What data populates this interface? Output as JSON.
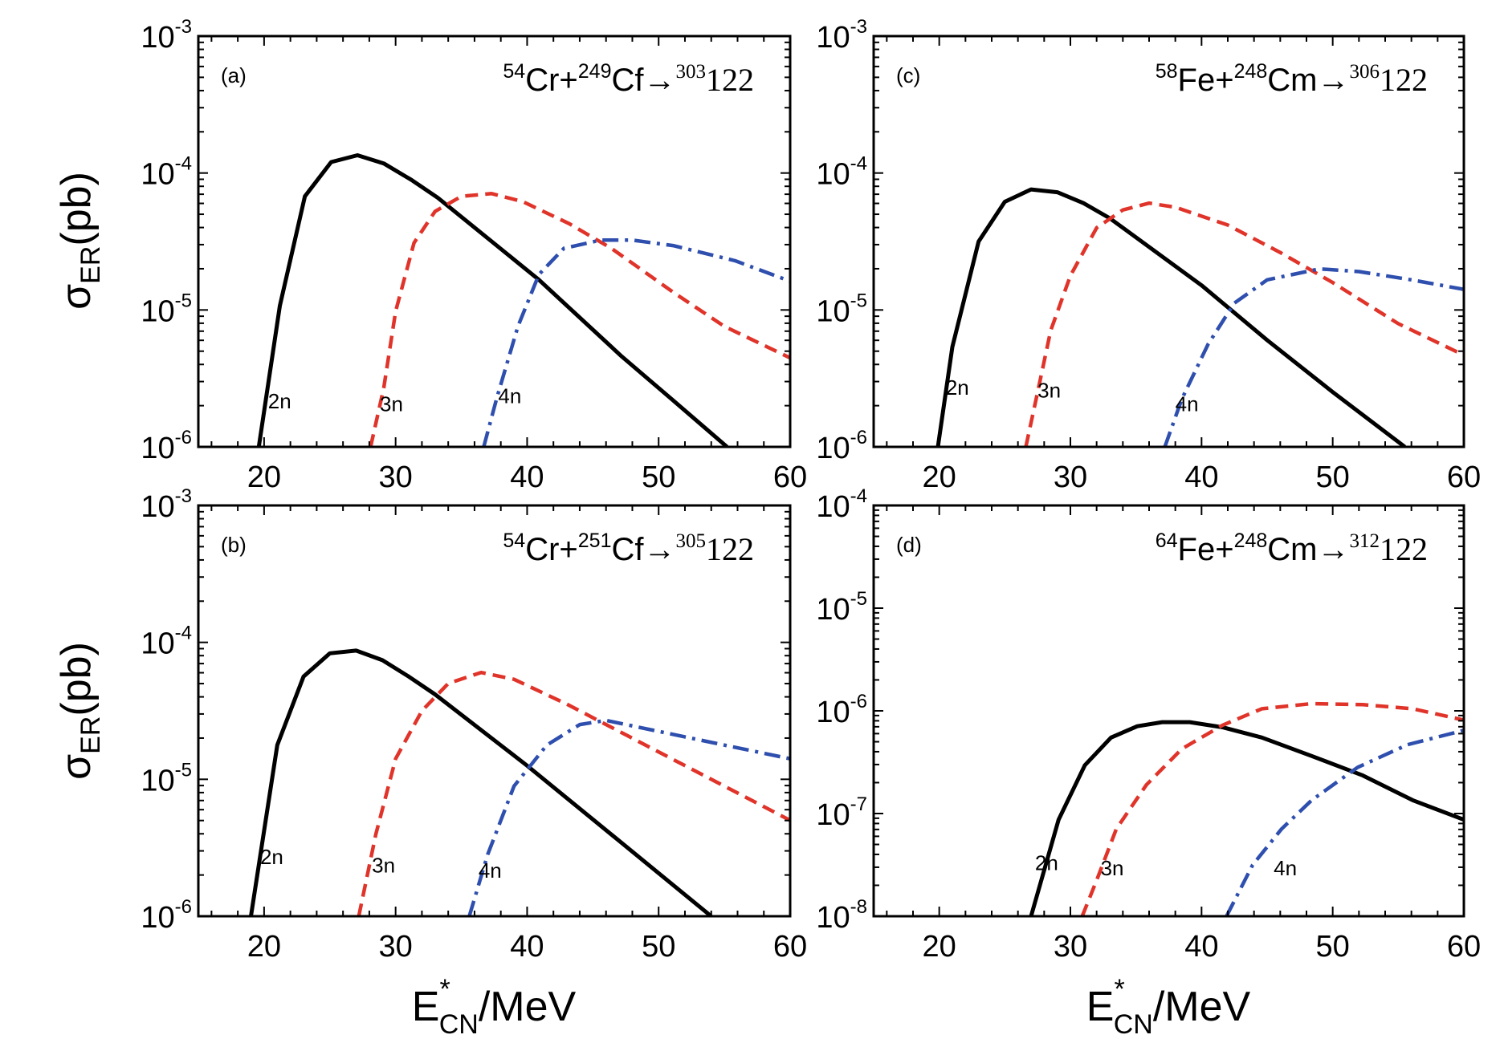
{
  "colors": {
    "2n": "#000000",
    "3n": "#e0342a",
    "4n": "#2f4fae"
  },
  "axis_labels": {
    "y": {
      "main": "σ",
      "sub": "ER",
      "unit": "(pb)"
    },
    "x": {
      "main": "E",
      "sup": "*",
      "sub": "CN",
      "unit": "/MeV"
    }
  },
  "chart_data": [
    {
      "type": "line",
      "panel": "(a)",
      "title": {
        "proj_mass": "54",
        "proj": "Cr+",
        "targ_mass": "249",
        "targ": "Cf→",
        "cn_mass": "303",
        "cn": "122"
      },
      "xlim": [
        15,
        60
      ],
      "ylim": [
        1e-06,
        0.001
      ],
      "yscale": "log",
      "xticks": [
        "20",
        "30",
        "40",
        "50",
        "60"
      ],
      "yticks": [
        {
          "base": "10",
          "exp": "-6"
        },
        {
          "base": "10",
          "exp": "-5"
        },
        {
          "base": "10",
          "exp": "-4"
        },
        {
          "base": "10",
          "exp": "-3"
        }
      ],
      "series": [
        {
          "name": "2n",
          "style": "solid",
          "points": [
            [
              19.6,
              -6
            ],
            [
              21.2,
              -4.97
            ],
            [
              23.1,
              -4.17
            ],
            [
              25.1,
              -3.92
            ],
            [
              27.1,
              -3.87
            ],
            [
              29.1,
              -3.93
            ],
            [
              31.2,
              -4.05
            ],
            [
              33.2,
              -4.18
            ],
            [
              40.9,
              -4.78
            ],
            [
              47.2,
              -5.34
            ],
            [
              51.1,
              -5.66
            ],
            [
              55.2,
              -6
            ]
          ]
        },
        {
          "name": "3n",
          "style": "dashed",
          "points": [
            [
              28.1,
              -6
            ],
            [
              29.1,
              -5.57
            ],
            [
              30.0,
              -5.01
            ],
            [
              31.4,
              -4.51
            ],
            [
              33.0,
              -4.28
            ],
            [
              35.0,
              -4.17
            ],
            [
              37.3,
              -4.15
            ],
            [
              39.7,
              -4.21
            ],
            [
              43.2,
              -4.37
            ],
            [
              46.4,
              -4.55
            ],
            [
              51.1,
              -4.87
            ],
            [
              55.0,
              -5.12
            ],
            [
              60,
              -5.35
            ]
          ]
        },
        {
          "name": "4n",
          "style": "dashdot",
          "points": [
            [
              36.7,
              -6
            ],
            [
              37.7,
              -5.64
            ],
            [
              39.3,
              -5.12
            ],
            [
              40.9,
              -4.74
            ],
            [
              42.8,
              -4.55
            ],
            [
              45.6,
              -4.49
            ],
            [
              48.0,
              -4.49
            ],
            [
              51.1,
              -4.53
            ],
            [
              55.8,
              -4.64
            ],
            [
              60,
              -4.79
            ]
          ]
        }
      ]
    },
    {
      "type": "line",
      "panel": "(b)",
      "title": {
        "proj_mass": "54",
        "proj": "Cr+",
        "targ_mass": "251",
        "targ": "Cf→",
        "cn_mass": "305",
        "cn": "122"
      },
      "xlim": [
        15,
        60
      ],
      "ylim": [
        1e-06,
        0.001
      ],
      "yscale": "log",
      "xticks": [
        "20",
        "30",
        "40",
        "50",
        "60"
      ],
      "yticks": [
        {
          "base": "10",
          "exp": "-6"
        },
        {
          "base": "10",
          "exp": "-5"
        },
        {
          "base": "10",
          "exp": "-4"
        },
        {
          "base": "10",
          "exp": "-3"
        }
      ],
      "series": [
        {
          "name": "2n",
          "style": "solid",
          "points": [
            [
              19,
              -6
            ],
            [
              21,
              -4.75
            ],
            [
              23,
              -4.25
            ],
            [
              25,
              -4.08
            ],
            [
              27,
              -4.06
            ],
            [
              29,
              -4.13
            ],
            [
              31,
              -4.25
            ],
            [
              33,
              -4.38
            ],
            [
              40,
              -4.9
            ],
            [
              47,
              -5.45
            ],
            [
              54,
              -6
            ]
          ]
        },
        {
          "name": "3n",
          "style": "dashed",
          "points": [
            [
              27.2,
              -6
            ],
            [
              28.5,
              -5.4
            ],
            [
              30,
              -4.85
            ],
            [
              32,
              -4.5
            ],
            [
              34,
              -4.3
            ],
            [
              36.5,
              -4.22
            ],
            [
              39,
              -4.27
            ],
            [
              43,
              -4.45
            ],
            [
              47,
              -4.65
            ],
            [
              52,
              -4.9
            ],
            [
              56,
              -5.1
            ],
            [
              60,
              -5.3
            ]
          ]
        },
        {
          "name": "4n",
          "style": "dashdot",
          "points": [
            [
              35.6,
              -6
            ],
            [
              37,
              -5.55
            ],
            [
              39,
              -5.05
            ],
            [
              41.5,
              -4.75
            ],
            [
              44,
              -4.6
            ],
            [
              46,
              -4.57
            ],
            [
              50,
              -4.65
            ],
            [
              55,
              -4.75
            ],
            [
              60,
              -4.85
            ]
          ]
        }
      ]
    },
    {
      "type": "line",
      "panel": "(c)",
      "title": {
        "proj_mass": "58",
        "proj": "Fe+",
        "targ_mass": "248",
        "targ": "Cm→",
        "cn_mass": "306",
        "cn": "122"
      },
      "xlim": [
        15,
        60
      ],
      "ylim": [
        1e-06,
        0.001
      ],
      "yscale": "log",
      "xticks": [
        "20",
        "30",
        "40",
        "50",
        "60"
      ],
      "yticks": [
        {
          "base": "10",
          "exp": "-6"
        },
        {
          "base": "10",
          "exp": "-5"
        },
        {
          "base": "10",
          "exp": "-4"
        },
        {
          "base": "10",
          "exp": "-3"
        }
      ],
      "series": [
        {
          "name": "2n",
          "style": "solid",
          "points": [
            [
              19.9,
              -6
            ],
            [
              21,
              -5.27
            ],
            [
              23,
              -4.5
            ],
            [
              25,
              -4.21
            ],
            [
              27,
              -4.12
            ],
            [
              29,
              -4.14
            ],
            [
              31,
              -4.22
            ],
            [
              33,
              -4.33
            ],
            [
              35,
              -4.47
            ],
            [
              40,
              -4.82
            ],
            [
              45,
              -5.22
            ],
            [
              50,
              -5.6
            ],
            [
              55.5,
              -6
            ]
          ]
        },
        {
          "name": "3n",
          "style": "dashed",
          "points": [
            [
              26.6,
              -6
            ],
            [
              27.5,
              -5.6
            ],
            [
              28.5,
              -5.15
            ],
            [
              30,
              -4.75
            ],
            [
              32,
              -4.4
            ],
            [
              34,
              -4.27
            ],
            [
              36,
              -4.22
            ],
            [
              38,
              -4.25
            ],
            [
              42,
              -4.38
            ],
            [
              46,
              -4.58
            ],
            [
              50,
              -4.8
            ],
            [
              55,
              -5.1
            ],
            [
              60,
              -5.33
            ]
          ]
        },
        {
          "name": "4n",
          "style": "dashdot",
          "points": [
            [
              37.2,
              -6
            ],
            [
              38.5,
              -5.65
            ],
            [
              40.5,
              -5.25
            ],
            [
              42.5,
              -4.95
            ],
            [
              45,
              -4.78
            ],
            [
              49,
              -4.7
            ],
            [
              52,
              -4.72
            ],
            [
              56,
              -4.78
            ],
            [
              60,
              -4.85
            ]
          ]
        }
      ]
    },
    {
      "type": "line",
      "panel": "(d)",
      "title": {
        "proj_mass": "64",
        "proj": "Fe+",
        "targ_mass": "248",
        "targ": "Cm→",
        "cn_mass": "312",
        "cn": "122"
      },
      "xlim": [
        15,
        60
      ],
      "ylim": [
        1e-08,
        0.0001
      ],
      "yscale": "log",
      "xticks": [
        "20",
        "30",
        "40",
        "50",
        "60"
      ],
      "yticks": [
        {
          "base": "10",
          "exp": "-8"
        },
        {
          "base": "10",
          "exp": "-7"
        },
        {
          "base": "10",
          "exp": "-6"
        },
        {
          "base": "10",
          "exp": "-5"
        },
        {
          "base": "10",
          "exp": "-4"
        }
      ],
      "series": [
        {
          "name": "2n",
          "style": "solid",
          "points": [
            [
              27,
              -8
            ],
            [
              29.1,
              -7.06
            ],
            [
              31.1,
              -6.53
            ],
            [
              33.1,
              -6.26
            ],
            [
              35.1,
              -6.15
            ],
            [
              37,
              -6.11
            ],
            [
              39.1,
              -6.11
            ],
            [
              41.6,
              -6.16
            ],
            [
              44.6,
              -6.26
            ],
            [
              48.4,
              -6.44
            ],
            [
              52.3,
              -6.63
            ],
            [
              56.1,
              -6.87
            ],
            [
              60,
              -7.06
            ]
          ]
        },
        {
          "name": "3n",
          "style": "dashed",
          "points": [
            [
              30.9,
              -8
            ],
            [
              32,
              -7.65
            ],
            [
              33.5,
              -7.15
            ],
            [
              35.8,
              -6.72
            ],
            [
              38.5,
              -6.37
            ],
            [
              41.6,
              -6.14
            ],
            [
              44.6,
              -5.98
            ],
            [
              48.4,
              -5.93
            ],
            [
              52.3,
              -5.94
            ],
            [
              56.1,
              -5.98
            ],
            [
              60,
              -6.09
            ]
          ]
        },
        {
          "name": "4n",
          "style": "dashdot",
          "points": [
            [
              41.9,
              -8
            ],
            [
              43.9,
              -7.5
            ],
            [
              46.1,
              -7.15
            ],
            [
              48.4,
              -6.87
            ],
            [
              51.9,
              -6.55
            ],
            [
              55.7,
              -6.33
            ],
            [
              60,
              -6.19
            ]
          ]
        }
      ]
    }
  ]
}
